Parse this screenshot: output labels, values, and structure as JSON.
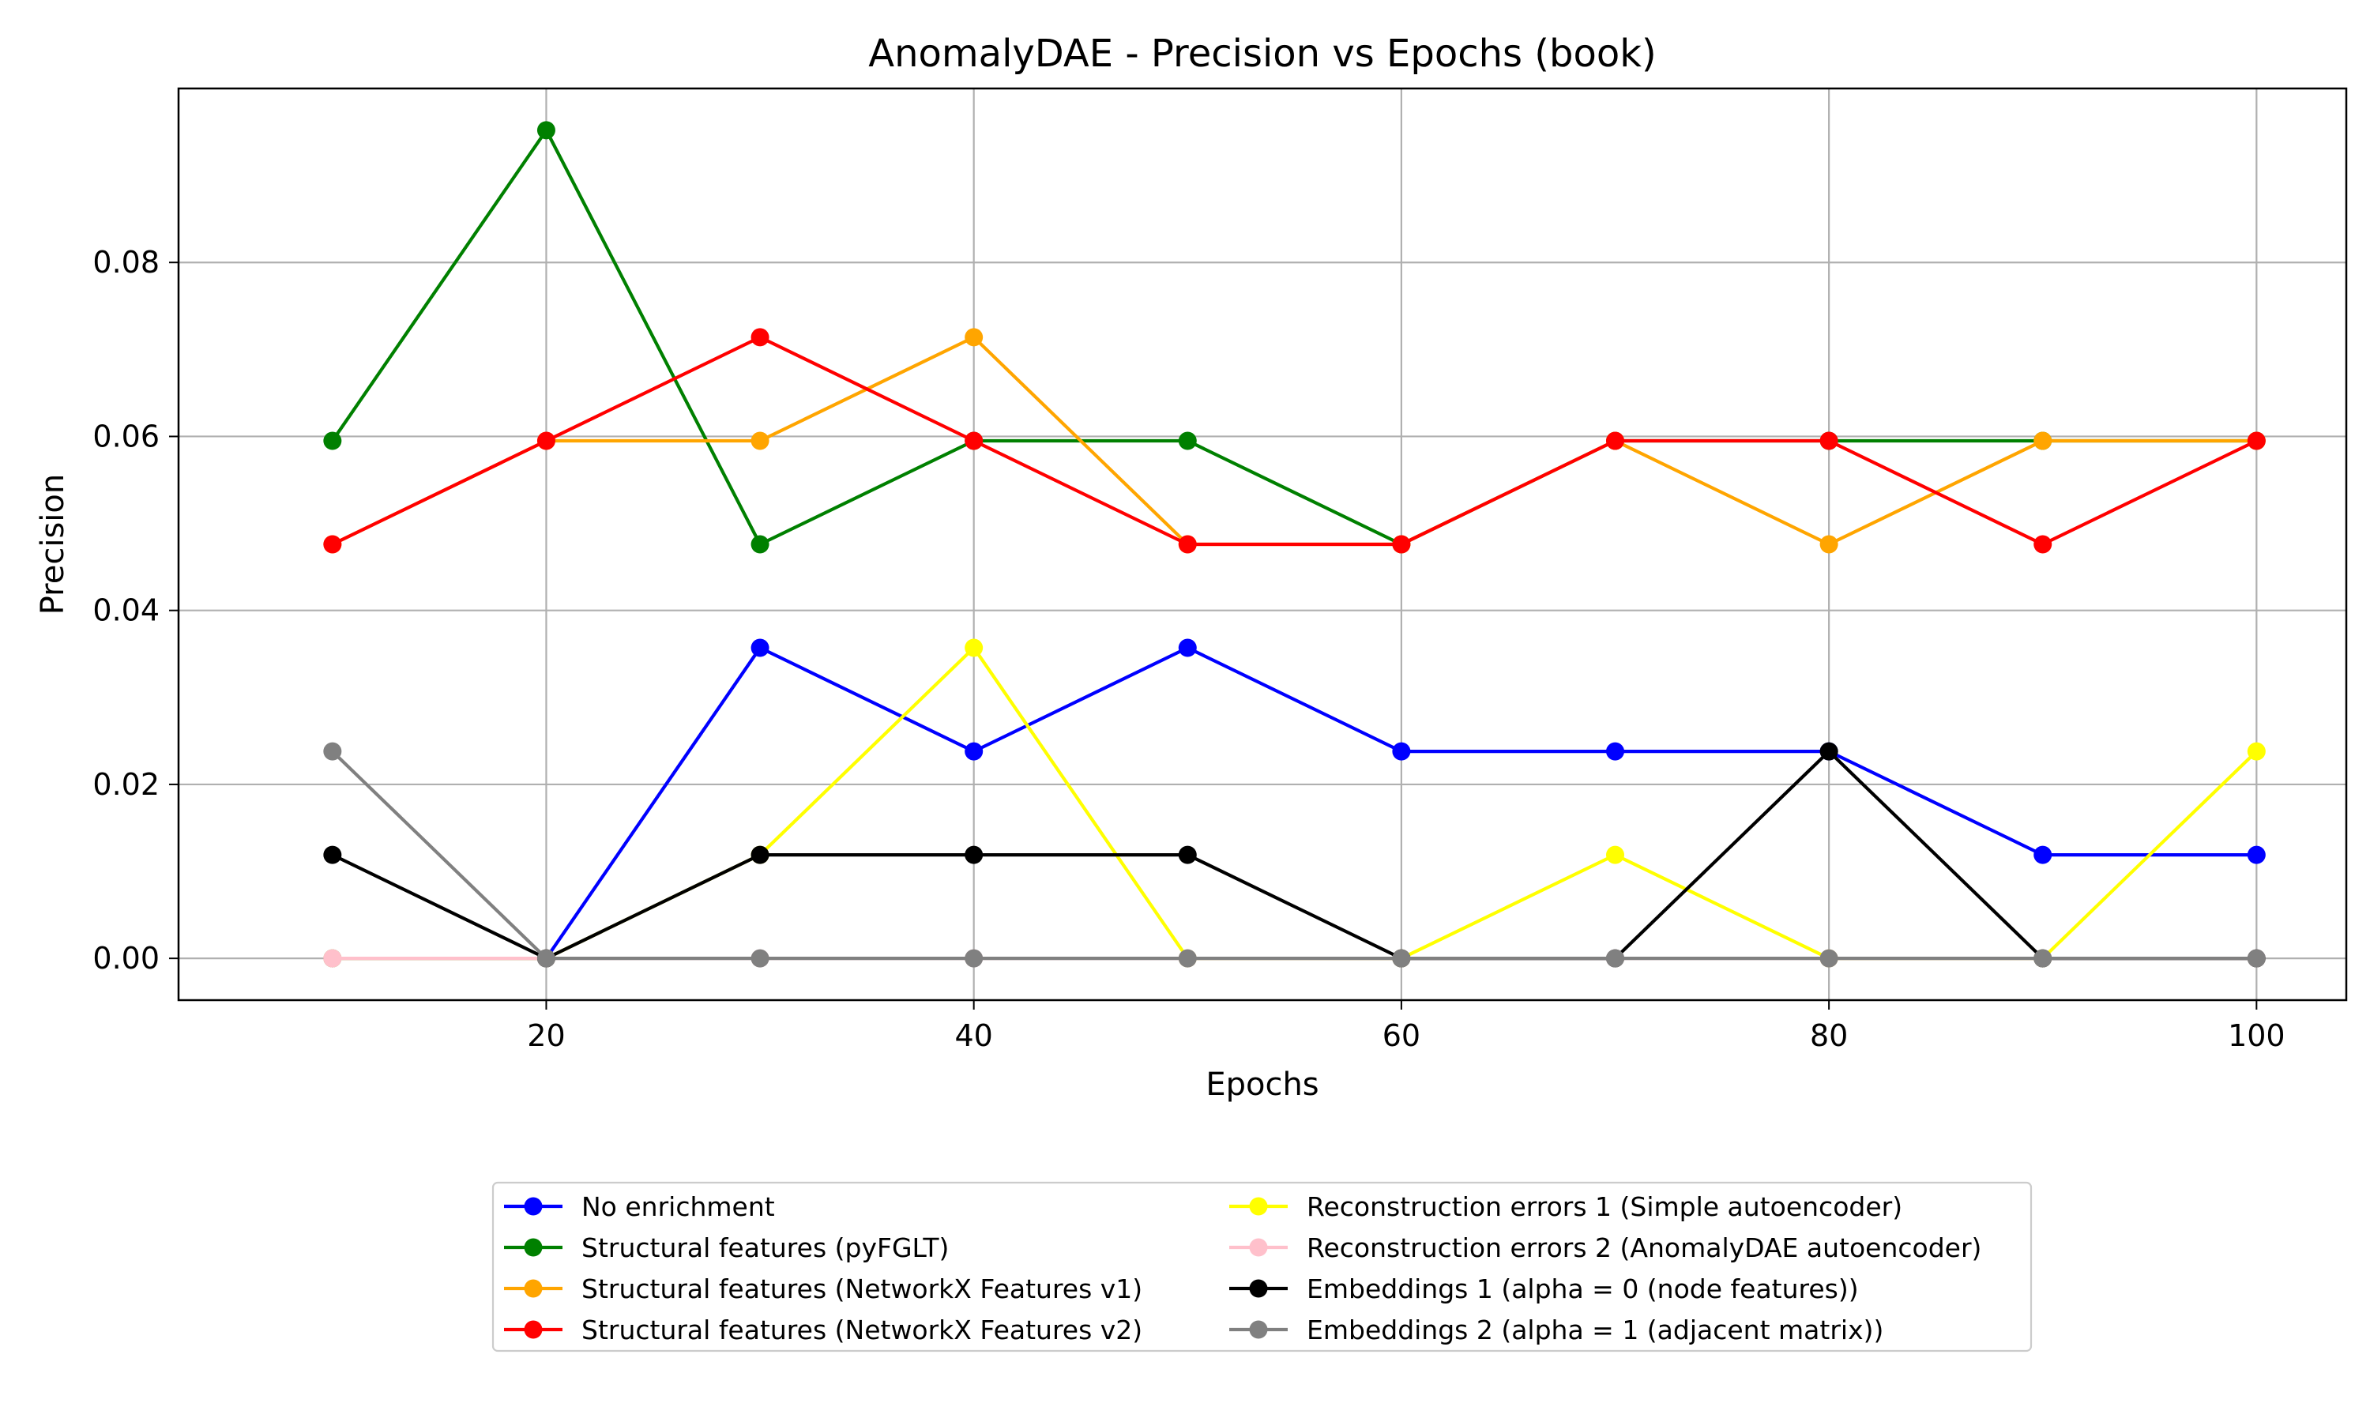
{
  "chart_data": {
    "type": "line",
    "title": "AnomalyDAE - Precision vs Epochs (book)",
    "xlabel": "Epochs",
    "ylabel": "Precision",
    "x": [
      10,
      20,
      30,
      40,
      50,
      60,
      70,
      80,
      90,
      100
    ],
    "xlim": [
      2.8,
      104.2
    ],
    "ylim": [
      -0.0048,
      0.1
    ],
    "xticks": [
      20,
      40,
      60,
      80,
      100
    ],
    "yticks": [
      0.0,
      0.02,
      0.04,
      0.06,
      0.08
    ],
    "xtick_labels": [
      "20",
      "40",
      "60",
      "80",
      "100"
    ],
    "ytick_labels": [
      "0.00",
      "0.02",
      "0.04",
      "0.06",
      "0.08"
    ],
    "grid": true,
    "legend_position": "below plot, two columns",
    "series": [
      {
        "name": "No enrichment",
        "color": "#0000ff",
        "values": [
          0.0,
          0.0,
          0.0357,
          0.0238,
          0.0357,
          0.0238,
          0.0238,
          0.0238,
          0.0119,
          0.0119
        ]
      },
      {
        "name": "Structural features (pyFGLT)",
        "color": "#008000",
        "values": [
          0.0595,
          0.0952,
          0.0476,
          0.0595,
          0.0595,
          0.0476,
          0.0595,
          0.0595,
          0.0595,
          0.0595
        ]
      },
      {
        "name": "Structural features (NetworkX Features v1)",
        "color": "#ffa500",
        "values": [
          0.0476,
          0.0595,
          0.0595,
          0.0714,
          0.0476,
          0.0476,
          0.0595,
          0.0476,
          0.0595,
          0.0595
        ]
      },
      {
        "name": "Structural features (NetworkX Features v2)",
        "color": "#ff0000",
        "values": [
          0.0476,
          0.0595,
          0.0714,
          0.0595,
          0.0476,
          0.0476,
          0.0595,
          0.0595,
          0.0476,
          0.0595
        ]
      },
      {
        "name": "Reconstruction errors 1 (Simple autoencoder)",
        "color": "#ffff00",
        "values": [
          0.0,
          0.0,
          0.0119,
          0.0357,
          0.0,
          0.0,
          0.0119,
          0.0,
          0.0,
          0.0238
        ]
      },
      {
        "name": "Reconstruction errors 2 (AnomalyDAE autoencoder)",
        "color": "#ffc0cb",
        "values": [
          0.0,
          0.0,
          0.0,
          0.0,
          0.0,
          0.0,
          0.0,
          0.0,
          0.0,
          0.0
        ]
      },
      {
        "name": "Embeddings 1 (alpha = 0 (node features))",
        "color": "#000000",
        "values": [
          0.0119,
          0.0,
          0.0119,
          0.0119,
          0.0119,
          0.0,
          0.0,
          0.0238,
          0.0,
          0.0
        ]
      },
      {
        "name": "Embeddings 2 (alpha = 1 (adjacent matrix))",
        "color": "#808080",
        "values": [
          0.0238,
          0.0,
          0.0,
          0.0,
          0.0,
          0.0,
          0.0,
          0.0,
          0.0,
          0.0
        ]
      }
    ]
  }
}
